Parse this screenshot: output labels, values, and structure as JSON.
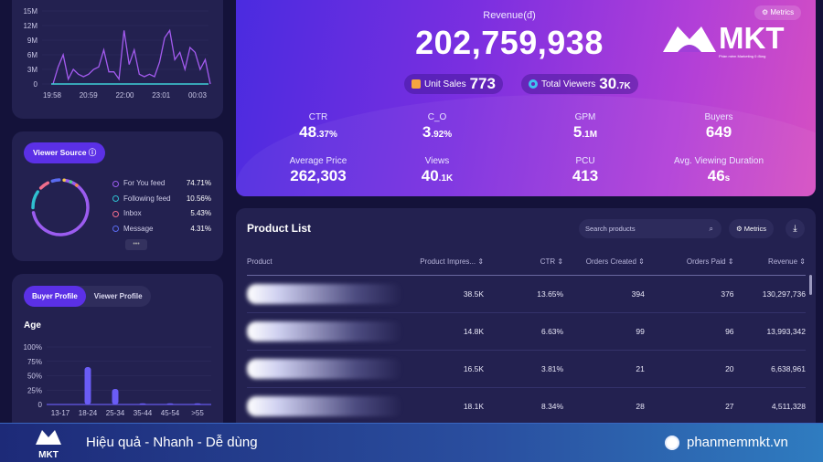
{
  "viewers_chart": {
    "type": "line",
    "y_ticks": [
      "15M",
      "12M",
      "9M",
      "6M",
      "3M",
      "0"
    ],
    "x_ticks": [
      "19:58",
      "20:59",
      "22:00",
      "23:01",
      "00:03"
    ],
    "ylim": [
      0,
      15000000
    ],
    "values": [
      0,
      3500000,
      6000000,
      1000000,
      3000000,
      2000000,
      1500000,
      2000000,
      3000000,
      3500000,
      7000000,
      2500000,
      2500000,
      1000000,
      11000000,
      4000000,
      7000000,
      2000000,
      1500000,
      2000000,
      1500000,
      4500000,
      9500000,
      11000000,
      5000000,
      6500000,
      3000000,
      7500000,
      6500000,
      3000000,
      5000000,
      0
    ],
    "color": "#a45bf0",
    "baseline_color": "#3fd1d8"
  },
  "viewer_source": {
    "button": "Viewer Source ⓘ",
    "more": "•••",
    "items": [
      {
        "label": "For You feed",
        "value": "74.71%",
        "color": "#9b5cf0",
        "share": 74.71
      },
      {
        "label": "Following feed",
        "value": "10.56%",
        "color": "#2fc0d0",
        "share": 10.56
      },
      {
        "label": "Inbox",
        "value": "5.43%",
        "color": "#f06d8c",
        "share": 5.43
      },
      {
        "label": "Message",
        "value": "4.31%",
        "color": "#5a6bf0",
        "share": 4.31
      }
    ]
  },
  "profile": {
    "tabs": [
      "Buyer Profile",
      "Viewer Profile"
    ],
    "active": 0,
    "title": "Age",
    "chart_data": {
      "type": "bar",
      "categories": [
        "13-17",
        "18-24",
        "25-34",
        "35-44",
        "45-54",
        ">55"
      ],
      "values": [
        0,
        65,
        27,
        2,
        2,
        2
      ],
      "y_ticks": [
        "100%",
        "75%",
        "50%",
        "25%",
        "0"
      ],
      "ylim": [
        0,
        100
      ],
      "color": "#6a5cf5"
    }
  },
  "hero": {
    "revenue_label": "Revenue(đ)",
    "revenue": "202,759,938",
    "unit_sales_label": "Unit Sales",
    "unit_sales": "773",
    "viewers_label": "Total Viewers",
    "viewers": "30",
    "viewers_suffix": ".7K",
    "metrics_button": "⚙ Metrics",
    "logo_text": "MKT",
    "logo_tagline": "Phần mềm Marketing 0 đồng",
    "stats": [
      {
        "label": "CTR",
        "value": "48",
        "suffix": ".37%"
      },
      {
        "label": "C_O",
        "value": "3",
        "suffix": ".92%"
      },
      {
        "label": "GPM",
        "value": "5",
        "suffix": ".1M"
      },
      {
        "label": "Buyers",
        "value": "649",
        "suffix": ""
      },
      {
        "label": "Average Price",
        "value": "262,303",
        "suffix": ""
      },
      {
        "label": "Views",
        "value": "40",
        "suffix": ".1K"
      },
      {
        "label": "PCU",
        "value": "413",
        "suffix": ""
      },
      {
        "label": "Avg. Viewing Duration",
        "value": "46",
        "suffix": "s"
      }
    ]
  },
  "products": {
    "title": "Product List",
    "search_placeholder": "Search products",
    "metrics_button": "⚙ Metrics",
    "columns": [
      "Product",
      "Product Impres... ⇕",
      "CTR ⇕",
      "Orders Created ⇕",
      "Orders Paid ⇕",
      "Revenue ⇕"
    ],
    "rows": [
      [
        "38.5K",
        "13.65%",
        "394",
        "376",
        "130,297,736"
      ],
      [
        "14.8K",
        "6.63%",
        "99",
        "96",
        "13,993,342"
      ],
      [
        "16.5K",
        "3.81%",
        "21",
        "20",
        "6,638,961"
      ],
      [
        "18.1K",
        "8.34%",
        "28",
        "27",
        "4,511,328"
      ]
    ]
  },
  "footer": {
    "slogan": "Hiệu quả - Nhanh - Dễ dùng",
    "website": "phanmemmkt.vn",
    "logo_text": "MKT"
  }
}
